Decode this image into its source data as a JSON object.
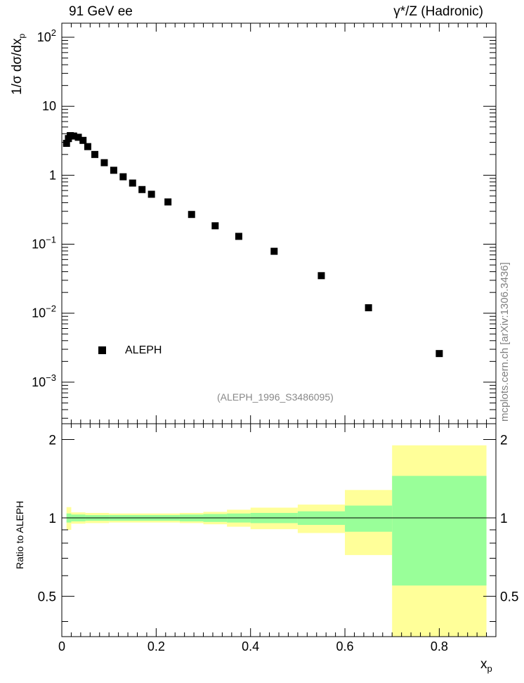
{
  "header": {
    "left": "91 GeV ee",
    "right": "γ*/Z (Hadronic)"
  },
  "reference_id": "(ALEPH_1996_S3486095)",
  "watermark": "mcplots.cern.ch [arXiv:1306.3436]",
  "colors": {
    "inner_band": "#99ff99",
    "outer_band": "#ffff99",
    "marker": "#000000",
    "ref_text": "#888888"
  },
  "chart_data": [
    {
      "type": "scatter",
      "title": "",
      "ylabel_main": "1/σ dσ/dx",
      "ylabel_sub": "p",
      "xlim": [
        0,
        0.92
      ],
      "ylim": [
        0.00025,
        160
      ],
      "yscale": "log",
      "y_ticks": [
        {
          "value": 100,
          "base": "10",
          "exp": "2"
        },
        {
          "value": 10,
          "base": "10",
          "exp": ""
        },
        {
          "value": 1,
          "base": "1",
          "exp": ""
        },
        {
          "value": 0.1,
          "base": "10",
          "exp": "−1"
        },
        {
          "value": 0.01,
          "base": "10",
          "exp": "−2"
        },
        {
          "value": 0.001,
          "base": "10",
          "exp": "−3"
        }
      ],
      "legend": {
        "position": "lower-left",
        "entries": [
          "ALEPH"
        ]
      },
      "series": [
        {
          "name": "ALEPH",
          "x": [
            0.01,
            0.014,
            0.018,
            0.025,
            0.035,
            0.045,
            0.055,
            0.07,
            0.09,
            0.11,
            0.13,
            0.15,
            0.17,
            0.19,
            0.225,
            0.275,
            0.325,
            0.375,
            0.45,
            0.55,
            0.65,
            0.8
          ],
          "y": [
            2.9,
            3.4,
            3.75,
            3.7,
            3.55,
            3.2,
            2.6,
            2.0,
            1.52,
            1.18,
            0.95,
            0.77,
            0.62,
            0.53,
            0.41,
            0.27,
            0.185,
            0.13,
            0.079,
            0.035,
            0.012,
            0.0026
          ]
        }
      ]
    },
    {
      "type": "area",
      "ylabel": "Ratio to ALEPH",
      "xlabel_main": "x",
      "xlabel_sub": "p",
      "xlim": [
        0,
        0.92
      ],
      "ylim": [
        0.35,
        2.3
      ],
      "x_ticks": [
        "0",
        "0.2",
        "0.4",
        "0.6",
        "0.8"
      ],
      "y_ticks": [
        "0.5",
        "1",
        "2"
      ],
      "reference_line": 1,
      "bands": [
        {
          "x0": 0.01,
          "x1": 0.02,
          "inner": [
            0.96,
            1.04
          ],
          "outer": [
            0.9,
            1.1
          ]
        },
        {
          "x0": 0.02,
          "x1": 0.05,
          "inner": [
            0.97,
            1.03
          ],
          "outer": [
            0.95,
            1.05
          ]
        },
        {
          "x0": 0.05,
          "x1": 0.1,
          "inner": [
            0.975,
            1.025
          ],
          "outer": [
            0.955,
            1.045
          ]
        },
        {
          "x0": 0.1,
          "x1": 0.25,
          "inner": [
            0.975,
            1.025
          ],
          "outer": [
            0.96,
            1.04
          ]
        },
        {
          "x0": 0.25,
          "x1": 0.3,
          "inner": [
            0.97,
            1.03
          ],
          "outer": [
            0.955,
            1.045
          ]
        },
        {
          "x0": 0.3,
          "x1": 0.35,
          "inner": [
            0.965,
            1.035
          ],
          "outer": [
            0.945,
            1.055
          ]
        },
        {
          "x0": 0.35,
          "x1": 0.4,
          "inner": [
            0.96,
            1.04
          ],
          "outer": [
            0.925,
            1.075
          ]
        },
        {
          "x0": 0.4,
          "x1": 0.5,
          "inner": [
            0.955,
            1.045
          ],
          "outer": [
            0.905,
            1.095
          ]
        },
        {
          "x0": 0.5,
          "x1": 0.6,
          "inner": [
            0.94,
            1.06
          ],
          "outer": [
            0.875,
            1.125
          ]
        },
        {
          "x0": 0.6,
          "x1": 0.7,
          "inner": [
            0.885,
            1.115
          ],
          "outer": [
            0.72,
            1.28
          ]
        },
        {
          "x0": 0.7,
          "x1": 0.9,
          "inner": [
            0.55,
            1.45
          ],
          "outer": [
            0.35,
            1.9
          ]
        }
      ]
    }
  ]
}
